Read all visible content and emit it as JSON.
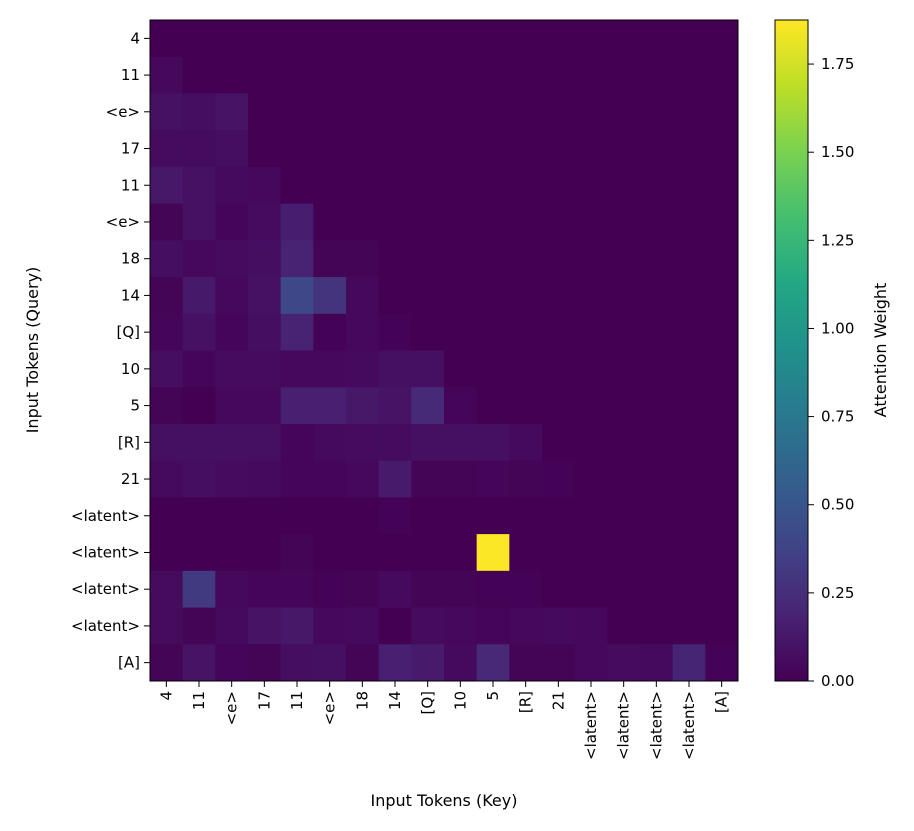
{
  "chart_data": {
    "type": "heatmap",
    "xlabel": "Input Tokens (Key)",
    "ylabel": "Input Tokens (Query)",
    "x_tokens": [
      "4",
      "11",
      "<e>",
      "17",
      "11",
      "<e>",
      "18",
      "14",
      "[Q]",
      "10",
      "5",
      "[R]",
      "21",
      "<latent>",
      "<latent>",
      "<latent>",
      "<latent>",
      "[A]"
    ],
    "y_tokens": [
      "4",
      "11",
      "<e>",
      "17",
      "11",
      "<e>",
      "18",
      "14",
      "[Q]",
      "10",
      "5",
      "[R]",
      "21",
      "<latent>",
      "<latent>",
      "<latent>",
      "<latent>",
      "[A]"
    ],
    "colorbar_label": "Attention Weight",
    "colorbar_ticks": [
      "0.00",
      "0.25",
      "0.50",
      "0.75",
      "1.00",
      "1.25",
      "1.50",
      "1.75"
    ],
    "vmin": 0.0,
    "vmax": 1.875,
    "colormap": "viridis",
    "values": [
      [
        0.0,
        0.0,
        0.0,
        0.0,
        0.0,
        0.0,
        0.0,
        0.0,
        0.0,
        0.0,
        0.0,
        0.0,
        0.0,
        0.0,
        0.0,
        0.0,
        0.0,
        0.0
      ],
      [
        0.04,
        0.0,
        0.0,
        0.0,
        0.0,
        0.0,
        0.0,
        0.0,
        0.0,
        0.0,
        0.0,
        0.0,
        0.0,
        0.0,
        0.0,
        0.0,
        0.0,
        0.0
      ],
      [
        0.09,
        0.07,
        0.1,
        0.0,
        0.0,
        0.0,
        0.0,
        0.0,
        0.0,
        0.0,
        0.0,
        0.0,
        0.0,
        0.0,
        0.0,
        0.0,
        0.0,
        0.0
      ],
      [
        0.06,
        0.06,
        0.07,
        0.0,
        0.0,
        0.0,
        0.0,
        0.0,
        0.0,
        0.0,
        0.0,
        0.0,
        0.0,
        0.0,
        0.0,
        0.0,
        0.0,
        0.0
      ],
      [
        0.12,
        0.09,
        0.05,
        0.04,
        0.0,
        0.0,
        0.0,
        0.0,
        0.0,
        0.0,
        0.0,
        0.0,
        0.0,
        0.0,
        0.0,
        0.0,
        0.0,
        0.0
      ],
      [
        0.02,
        0.09,
        0.03,
        0.06,
        0.16,
        0.0,
        0.0,
        0.0,
        0.0,
        0.0,
        0.0,
        0.0,
        0.0,
        0.0,
        0.0,
        0.0,
        0.0,
        0.0
      ],
      [
        0.07,
        0.04,
        0.06,
        0.07,
        0.19,
        0.02,
        0.02,
        0.0,
        0.0,
        0.0,
        0.0,
        0.0,
        0.0,
        0.0,
        0.0,
        0.0,
        0.0,
        0.0
      ],
      [
        0.02,
        0.13,
        0.04,
        0.09,
        0.41,
        0.29,
        0.04,
        0.0,
        0.0,
        0.0,
        0.0,
        0.0,
        0.0,
        0.0,
        0.0,
        0.0,
        0.0,
        0.0
      ],
      [
        0.03,
        0.09,
        0.03,
        0.07,
        0.18,
        0.01,
        0.04,
        0.01,
        0.0,
        0.0,
        0.0,
        0.0,
        0.0,
        0.0,
        0.0,
        0.0,
        0.0,
        0.0
      ],
      [
        0.07,
        0.03,
        0.06,
        0.06,
        0.04,
        0.04,
        0.05,
        0.08,
        0.08,
        0.0,
        0.0,
        0.0,
        0.0,
        0.0,
        0.0,
        0.0,
        0.0,
        0.0
      ],
      [
        0.02,
        0.0,
        0.04,
        0.04,
        0.17,
        0.17,
        0.12,
        0.1,
        0.23,
        0.03,
        0.0,
        0.0,
        0.0,
        0.0,
        0.0,
        0.0,
        0.0,
        0.0
      ],
      [
        0.08,
        0.08,
        0.08,
        0.08,
        0.03,
        0.05,
        0.06,
        0.06,
        0.08,
        0.08,
        0.08,
        0.05,
        0.0,
        0.0,
        0.0,
        0.0,
        0.0,
        0.0
      ],
      [
        0.05,
        0.07,
        0.06,
        0.05,
        0.03,
        0.03,
        0.04,
        0.14,
        0.02,
        0.02,
        0.03,
        0.02,
        0.01,
        0.0,
        0.0,
        0.0,
        0.0,
        0.0
      ],
      [
        0.0,
        0.0,
        0.0,
        0.0,
        0.0,
        0.0,
        0.0,
        0.01,
        0.0,
        0.0,
        0.0,
        0.0,
        0.0,
        0.0,
        0.0,
        0.0,
        0.0,
        0.0
      ],
      [
        0.0,
        0.0,
        0.0,
        0.0,
        0.02,
        0.0,
        0.0,
        0.0,
        0.0,
        0.0,
        1.87,
        0.0,
        0.0,
        0.0,
        0.0,
        0.0,
        0.0,
        0.0
      ],
      [
        0.06,
        0.32,
        0.04,
        0.03,
        0.03,
        0.01,
        0.02,
        0.05,
        0.02,
        0.02,
        0.01,
        0.01,
        0.0,
        0.0,
        0.0,
        0.0,
        0.0,
        0.0
      ],
      [
        0.06,
        0.02,
        0.05,
        0.1,
        0.12,
        0.04,
        0.05,
        0.0,
        0.06,
        0.04,
        0.03,
        0.04,
        0.05,
        0.04,
        0.0,
        0.0,
        0.0,
        0.0
      ],
      [
        0.02,
        0.1,
        0.03,
        0.02,
        0.07,
        0.08,
        0.02,
        0.17,
        0.14,
        0.05,
        0.22,
        0.02,
        0.02,
        0.04,
        0.06,
        0.05,
        0.2,
        0.01
      ]
    ]
  }
}
